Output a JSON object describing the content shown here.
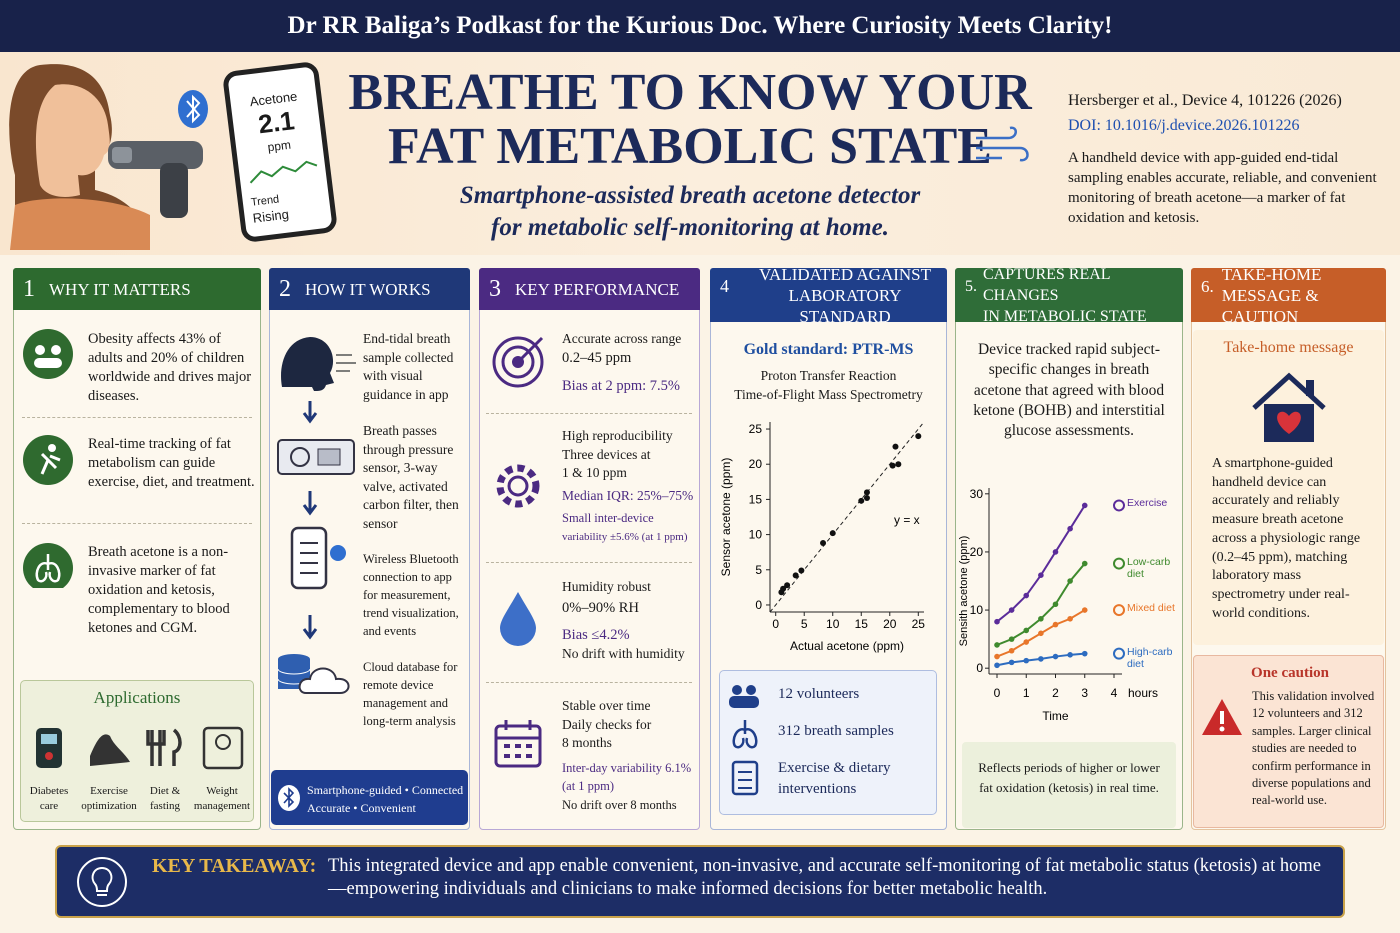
{
  "banner": "Dr RR Baliga’s Podkast for the Kurious Doc. Where Curiosity Meets Clarity!",
  "hero": {
    "phone": {
      "label": "Acetone",
      "value": "2.1",
      "unit": "ppm",
      "trend": "Trend",
      "trend_state": "Rising"
    },
    "title": [
      "BREATHE TO KNOW YOUR",
      "FAT METABOLIC STATE"
    ],
    "subtitle": [
      "Smartphone-assisted breath acetone detector",
      "for metabolic self-monitoring at home."
    ],
    "citation": "Hersberger et al., Device 4, 101226 (2026)",
    "doi": "DOI: 10.1016/j.device.2026.101226",
    "summary": "A handheld device with app-guided end-tidal sampling enables accurate, reliable, and convenient monitoring of breath acetone—a marker of fat oxidation and ketosis."
  },
  "panels": [
    {
      "number": "1",
      "title": [
        "WHY IT MATTERS"
      ],
      "items": [
        "Obesity affects 43% of adults and 20% of children worldwide and drives major diseases.",
        "Real-time tracking of fat metabolism can guide exercise, diet, and treatment.",
        "Breath acetone is a non-invasive marker of fat oxidation and ketosis, complementary to blood ketones and CGM."
      ],
      "applications": {
        "title": "Applications",
        "items": [
          "Diabetes care",
          "Exercise optimization",
          "Diet & fasting",
          "Weight management"
        ]
      }
    },
    {
      "number": "2",
      "title": [
        "HOW IT WORKS"
      ],
      "items": [
        "End-tidal breath sample collected with visual guidance in app",
        "Breath passes through pressure sensor, 3-way valve, activated carbon filter, then sensor",
        "Wireless Bluetooth connection to app for measurement, trend visualization, and events",
        "Cloud database for remote device management and long-term analysis"
      ],
      "footer": [
        "Smartphone-guided • Connected",
        "Accurate • Convenient"
      ]
    },
    {
      "number": "3",
      "title": [
        "KEY PERFORMANCE"
      ],
      "blocks": [
        [
          "Accurate across range",
          "0.2–45 ppm",
          "Bias at 2 ppm: 7.5%"
        ],
        [
          "High reproducibility",
          "Three devices at",
          "1 & 10 ppm",
          "Median IQR: 25%–75%",
          "Small inter-device",
          "variability ±5.6% (at 1 ppm)"
        ],
        [
          "Humidity robust",
          "0%–90% RH",
          "Bias ≤4.2%",
          "No drift with humidity"
        ],
        [
          "Stable over time",
          "Daily checks for",
          "8 months",
          "Inter-day variability 6.1%",
          "(at 1 ppm)",
          "No drift over 8 months"
        ]
      ]
    },
    {
      "number": "4",
      "title": [
        "VALIDATED AGAINST",
        "LABORATORY STANDARD"
      ],
      "gold_standard": "Gold standard: PTR-MS",
      "method": [
        "Proton Transfer Reaction",
        "Time-of-Flight Mass Spectrometry"
      ],
      "stats": [
        "12 volunteers",
        "312 breath samples",
        "Exercise & dietary interventions"
      ]
    },
    {
      "number": "5.",
      "title": [
        "CAPTURES REAL CHANGES",
        "IN METABOLIC STATE"
      ],
      "text": "Device tracked rapid subject-specific changes in breath acetone that agreed with blood ketone (BOHB) and interstitial glucose assessments.",
      "note": "Reflects periods of higher or lower fat oxidation (ketosis) in real time."
    },
    {
      "number": "6.",
      "title": [
        "TAKE-HOME",
        "MESSAGE & CAUTION"
      ],
      "message_title": "Take-home message",
      "message": "A smartphone-guided handheld device can accurately and reliably measure breath acetone across a physiologic range (0.2–45 ppm), matching laboratory mass spectrometry under real-world conditions.",
      "caution_title": "One caution",
      "caution": "This validation involved 12 volunteers and 312 samples. Larger clinical studies are needed to confirm performance in diverse populations and real-world use."
    }
  ],
  "chart_data": [
    {
      "type": "scatter",
      "xlabel": "Actual acetone (ppm)",
      "ylabel": "Sensor acetone (ppm)",
      "annotation": "y = x",
      "color": "#111111",
      "x": [
        1,
        1.3,
        2,
        3.5,
        4.5,
        8.3,
        10,
        15,
        16,
        16,
        20.5,
        21.5,
        21,
        25
      ],
      "values": [
        1.8,
        2.3,
        2.8,
        4.2,
        4.9,
        8.8,
        10.2,
        14.8,
        15.2,
        16,
        19.8,
        20,
        22.5,
        24
      ],
      "xlim": [
        -1,
        26
      ],
      "ylim": [
        -1,
        26
      ],
      "xticks": [
        0,
        5,
        10,
        15,
        20,
        25
      ],
      "yticks": [
        0,
        5,
        10,
        15,
        20,
        25
      ]
    },
    {
      "type": "line",
      "xlabel": "Time",
      "x_unit": "hours",
      "ylabel": "Sensith acetone (ppm)",
      "x": [
        0,
        0.5,
        1,
        1.5,
        2,
        2.5,
        3
      ],
      "series": [
        {
          "name": "Exercise",
          "color": "#5b2c9a",
          "values": [
            8,
            10,
            12.5,
            16,
            20,
            24,
            28
          ]
        },
        {
          "name": "Low-carb diet",
          "color": "#3f8a2e",
          "values": [
            4,
            5,
            6.5,
            8.5,
            11,
            15,
            18
          ]
        },
        {
          "name": "Mixed diet",
          "color": "#e8762a",
          "values": [
            2,
            3,
            4.5,
            6,
            7.5,
            8.5,
            10
          ]
        },
        {
          "name": "High-carb diet",
          "color": "#2d6cc0",
          "values": [
            0.5,
            1,
            1.3,
            1.6,
            2,
            2.3,
            2.5
          ]
        }
      ],
      "xlim": [
        0,
        4
      ],
      "ylim": [
        -1,
        31
      ],
      "xticks": [
        0,
        1,
        2,
        3,
        4
      ],
      "yticks": [
        0,
        10,
        20,
        30
      ]
    }
  ],
  "takeaway": {
    "label": "KEY TAKEAWAY:",
    "text": "This integrated device and app enable convenient, non-invasive, and accurate self-monitoring of fat metabolic status (ketosis) at home—empowering individuals and clinicians to make informed decisions for better metabolic health."
  }
}
